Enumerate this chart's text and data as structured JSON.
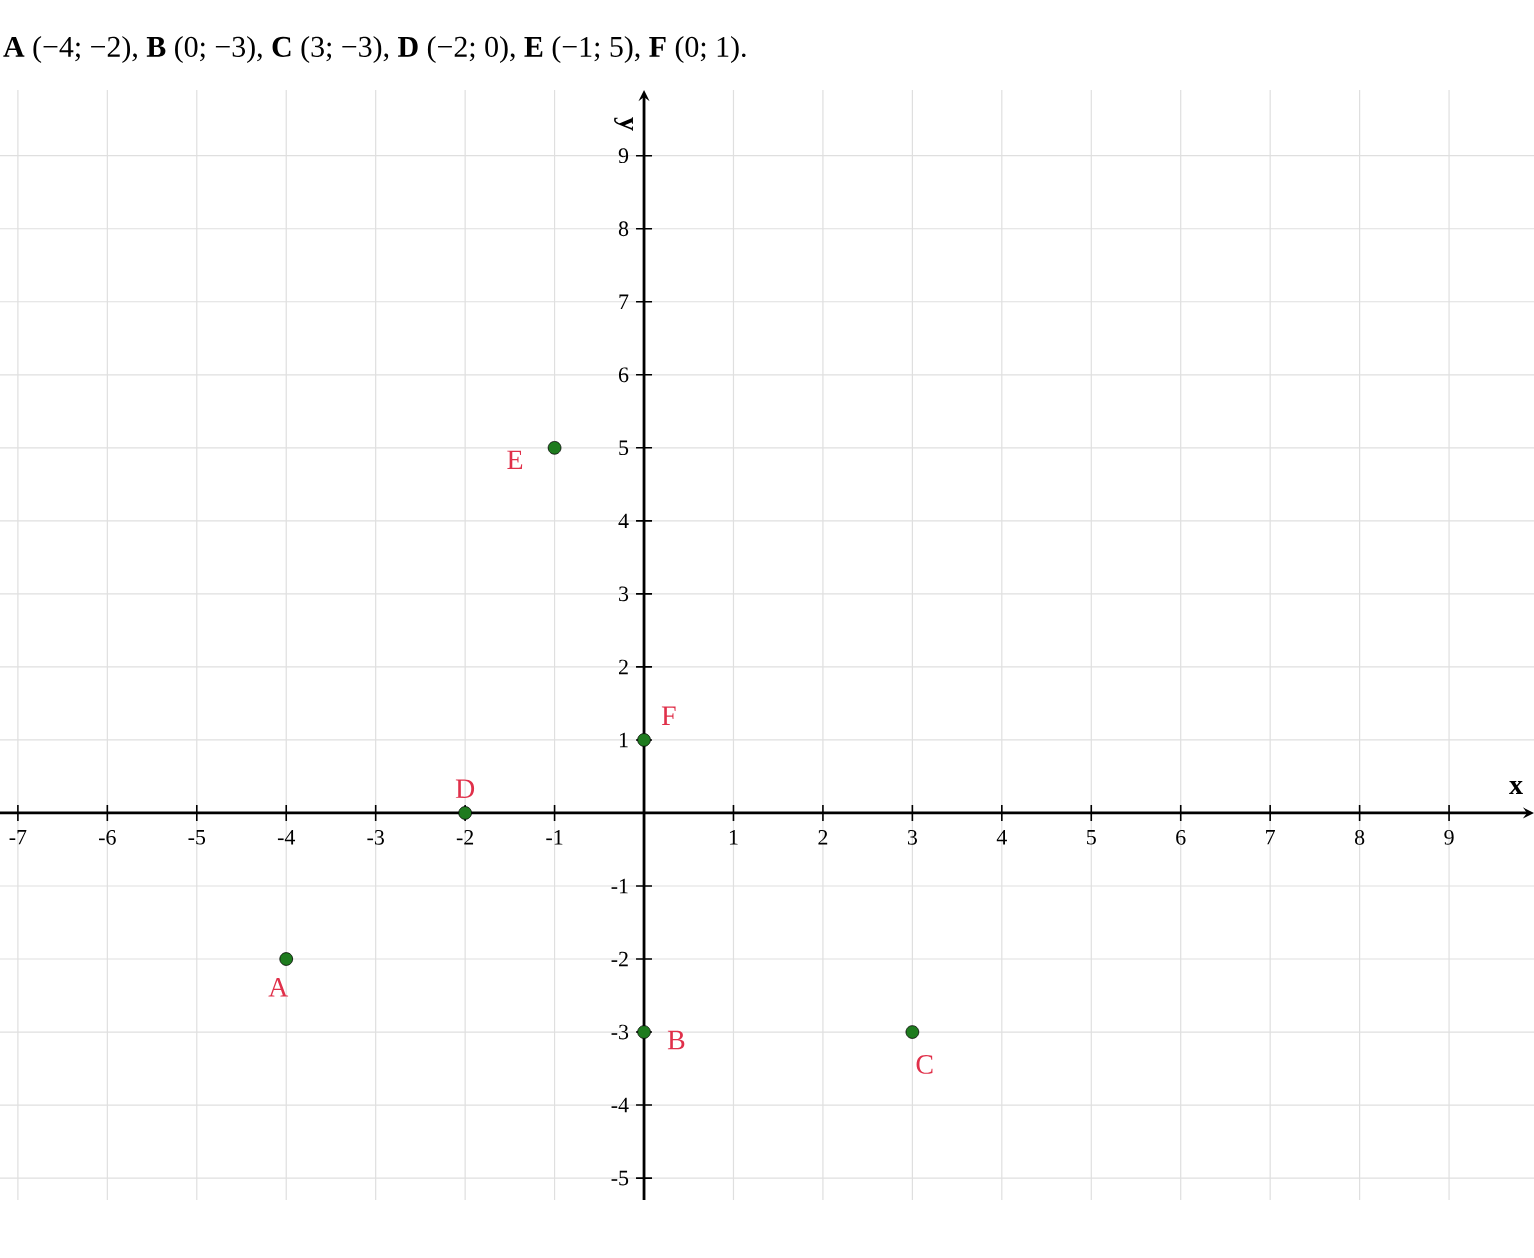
{
  "chart_data": {
    "type": "scatter",
    "title": "**A** (−4; −2), **B** (0; −3), **C** (3; −3), **D** (−2; 0), **E** (−1; 5), **F** (0; 1).",
    "xlabel": "x",
    "ylabel": "y",
    "x": [
      -4,
      0,
      3,
      -2,
      -1,
      0
    ],
    "series": [
      {
        "color": "#1e7b1e",
        "values": [
          -2,
          -3,
          -3,
          0,
          5,
          1
        ]
      }
    ],
    "xlim": [
      -7.2,
      9.95
    ],
    "ylim": [
      -5.3,
      9.9
    ],
    "xticks": [
      -7,
      -6,
      -5,
      -4,
      -3,
      -2,
      -1,
      1,
      2,
      3,
      4,
      5,
      6,
      7,
      8,
      9
    ],
    "yticks": [
      -5,
      -4,
      -3,
      -2,
      -1,
      1,
      2,
      3,
      4,
      5,
      6,
      7,
      8,
      9
    ],
    "grid": true,
    "marker": "circle",
    "annotations": [
      {
        "text": "A",
        "x": -4,
        "y": -2
      },
      {
        "text": "B",
        "x": 0,
        "y": -3
      },
      {
        "text": "C",
        "x": 3,
        "y": -3
      },
      {
        "text": "D",
        "x": -2,
        "y": 0
      },
      {
        "text": "E",
        "x": -1,
        "y": 5
      },
      {
        "text": "F",
        "x": 0,
        "y": 1
      }
    ]
  }
}
